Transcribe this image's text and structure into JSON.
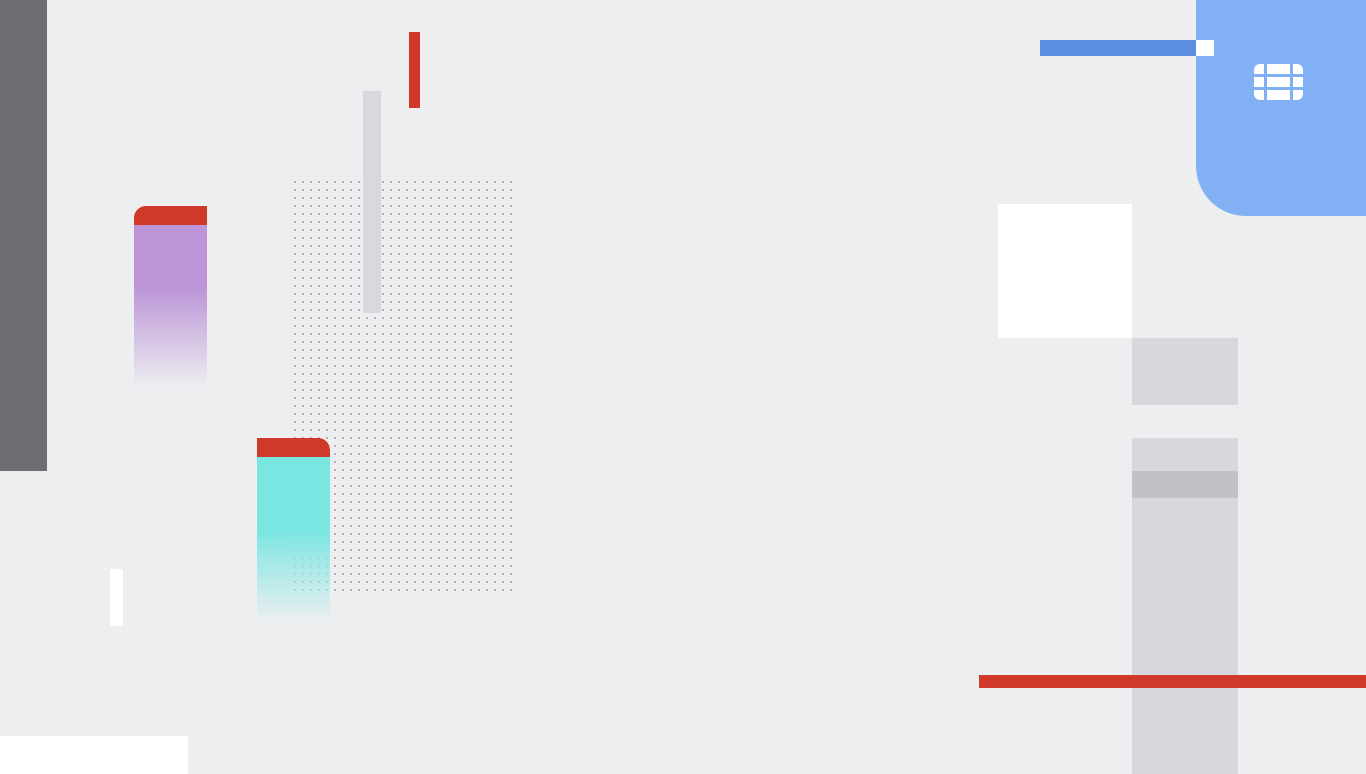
{
  "colors": {
    "background": "#edeef0",
    "dark_bar": "#6e6d72",
    "accent_red": "#d0382a",
    "light_grey": "#d8d9dc",
    "dot": "#9a9ca1",
    "purple": "#bc96d8",
    "teal": "#7ae6e2",
    "white": "#ffffff",
    "blue_line": "#5a8fe0",
    "blue_tile": "#82b0f4",
    "grey_block": "#d7d8db",
    "grey_band": "#c1c2c6"
  },
  "icons": {
    "logo": "fortinet-grid-logo-icon"
  }
}
